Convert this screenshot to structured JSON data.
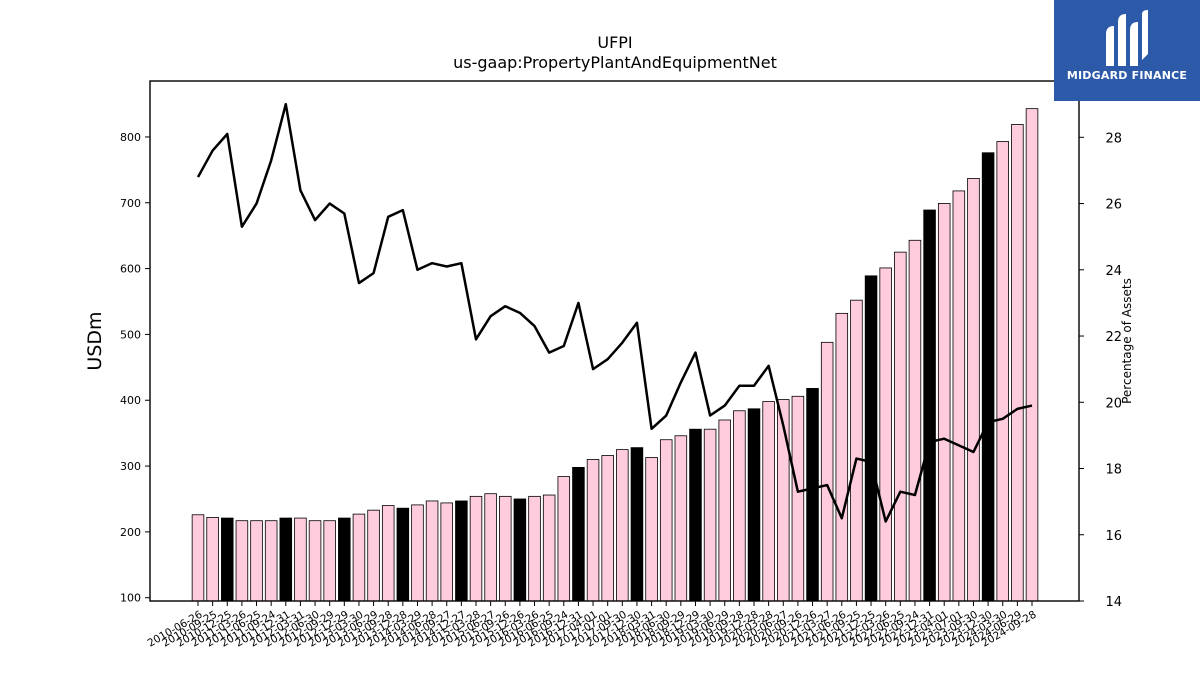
{
  "chart_data": {
    "type": "bar",
    "title": "UFPI",
    "subtitle": "us-gaap:PropertyPlantAndEquipmentNet",
    "ylabel": "USDm",
    "y2label": "Percentage of Assets",
    "ylim": [
      95,
      885
    ],
    "y2lim": [
      14,
      29.7
    ],
    "yticks": [
      100,
      200,
      300,
      400,
      500,
      600,
      700,
      800
    ],
    "y2ticks": [
      14,
      16,
      18,
      20,
      22,
      24,
      26,
      28
    ],
    "categories": [
      "2010-06-26",
      "2010-09-25",
      "2010-12-25",
      "2011-03-26",
      "2011-06-25",
      "2011-09-24",
      "2011-12-31",
      "2012-03-31",
      "2012-06-30",
      "2012-09-29",
      "2012-12-29",
      "2013-03-30",
      "2013-06-29",
      "2013-09-28",
      "2013-12-28",
      "2014-03-29",
      "2014-06-28",
      "2014-09-27",
      "2014-12-27",
      "2015-03-28",
      "2015-06-27",
      "2015-09-26",
      "2015-12-26",
      "2016-03-26",
      "2016-06-25",
      "2016-09-24",
      "2016-12-31",
      "2017-04-01",
      "2017-07-01",
      "2017-09-30",
      "2017-12-30",
      "2018-03-31",
      "2018-06-30",
      "2018-09-29",
      "2018-12-29",
      "2019-03-30",
      "2019-06-29",
      "2019-09-28",
      "2019-12-28",
      "2020-03-28",
      "2020-06-27",
      "2020-09-26",
      "2020-12-26",
      "2021-03-27",
      "2021-06-26",
      "2021-09-25",
      "2021-12-25",
      "2022-03-26",
      "2022-06-25",
      "2022-09-24",
      "2022-12-31",
      "2023-04-01",
      "2023-07-01",
      "2023-09-30",
      "2023-12-30",
      "2024-03-30",
      "2024-06-29",
      "2024-09-28"
    ],
    "series": [
      {
        "type": "bar",
        "values": [
          226,
          222,
          221,
          217,
          217,
          217,
          221,
          221,
          217,
          217,
          221,
          227,
          233,
          240,
          236,
          241,
          247,
          244,
          247,
          254,
          258,
          254,
          250,
          254,
          256,
          284,
          298,
          310,
          316,
          325,
          328,
          313,
          340,
          346,
          356,
          356,
          370,
          384,
          387,
          398,
          401,
          406,
          418,
          488,
          532,
          552,
          589,
          601,
          625,
          643,
          689,
          699,
          718,
          737,
          776,
          793,
          819,
          843
        ],
        "annual_flags": [
          0,
          0,
          1,
          0,
          0,
          0,
          1,
          0,
          0,
          0,
          1,
          0,
          0,
          0,
          1,
          0,
          0,
          0,
          1,
          0,
          0,
          0,
          1,
          0,
          0,
          0,
          1,
          0,
          0,
          0,
          1,
          0,
          0,
          0,
          1,
          0,
          0,
          0,
          1,
          0,
          0,
          0,
          1,
          0,
          0,
          0,
          1,
          0,
          0,
          0,
          1,
          0,
          0,
          0,
          1,
          0,
          0,
          0
        ]
      },
      {
        "type": "line",
        "axis": "right",
        "values": [
          26.8,
          27.6,
          28.1,
          25.3,
          26.0,
          27.3,
          29.0,
          26.4,
          25.5,
          26.0,
          25.7,
          23.6,
          23.9,
          25.6,
          25.8,
          24.0,
          24.2,
          24.1,
          24.2,
          21.9,
          22.6,
          22.9,
          22.7,
          22.3,
          21.5,
          21.7,
          23.0,
          21.0,
          21.3,
          21.8,
          22.4,
          19.2,
          19.6,
          20.6,
          21.5,
          19.6,
          19.9,
          20.5,
          20.5,
          21.1,
          19.3,
          17.3,
          17.4,
          17.5,
          16.5,
          18.3,
          18.2,
          16.4,
          17.3,
          17.2,
          18.8,
          18.9,
          18.7,
          18.5,
          19.4,
          19.5,
          19.8,
          19.9
        ]
      }
    ],
    "colors": {
      "bar_fill": "#ffccdd",
      "bar_annual_fill": "#000000",
      "bar_edge": "#000000",
      "line": "#000000"
    },
    "grid": false,
    "legend": "none"
  },
  "logo": {
    "text": "MIDGARD FINANCE",
    "background": "#2d5aa8"
  }
}
